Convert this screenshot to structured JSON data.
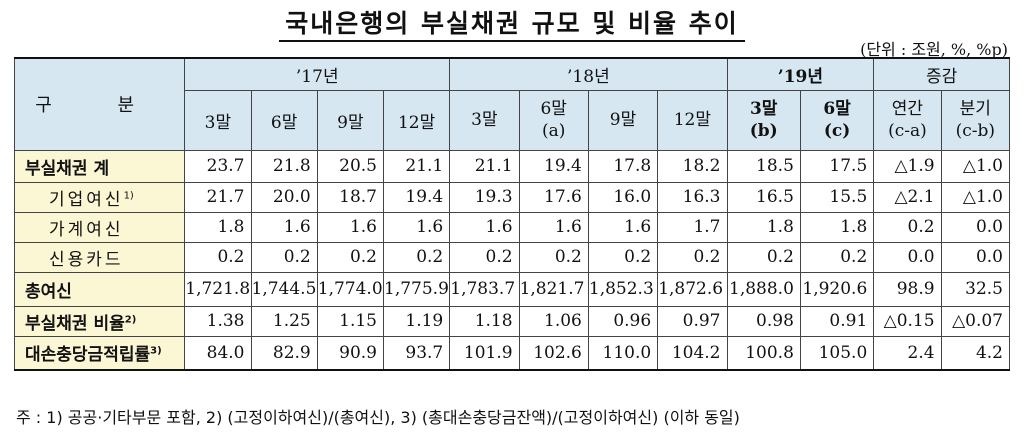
{
  "title": "국내은행의 부실채권 규모 및 비율 추이",
  "unit": "(단위 : 조원, %, %p)",
  "header": {
    "category": "구 분",
    "years": [
      "’17년",
      "’18년",
      "’19년",
      "증감"
    ],
    "sub17": [
      "3말",
      "6말",
      "9말",
      "12말"
    ],
    "sub18": [
      [
        "3말"
      ],
      [
        "6말",
        "(a)"
      ],
      [
        "9말"
      ],
      [
        "12말"
      ]
    ],
    "sub19": [
      [
        "3말",
        "(b)"
      ],
      [
        "6말",
        "(c)"
      ]
    ],
    "subChg": [
      [
        "연간",
        "(c-a)"
      ],
      [
        "분기",
        "(c-b)"
      ]
    ]
  },
  "rows": [
    {
      "label": "부실채권 계",
      "sup": "",
      "values": [
        "23.7",
        "21.8",
        "20.5",
        "21.1",
        "21.1",
        "19.4",
        "17.8",
        "18.2",
        "18.5",
        "17.5",
        "△1.9",
        "△1.0"
      ]
    },
    {
      "label": "기업여신",
      "sup": "1)",
      "values": [
        "21.7",
        "20.0",
        "18.7",
        "19.4",
        "19.3",
        "17.6",
        "16.0",
        "16.3",
        "16.5",
        "15.5",
        "△2.1",
        "△1.0"
      ]
    },
    {
      "label": "가계여신",
      "sup": "",
      "values": [
        "1.8",
        "1.6",
        "1.6",
        "1.6",
        "1.6",
        "1.6",
        "1.6",
        "1.7",
        "1.8",
        "1.8",
        "0.2",
        "0.0"
      ]
    },
    {
      "label": "신용카드",
      "sup": "",
      "values": [
        "0.2",
        "0.2",
        "0.2",
        "0.2",
        "0.2",
        "0.2",
        "0.2",
        "0.2",
        "0.2",
        "0.2",
        "0.0",
        "0.0"
      ]
    },
    {
      "label": "총여신",
      "sup": "",
      "values": [
        "1,721.8",
        "1,744.5",
        "1,774.0",
        "1,775.9",
        "1,783.7",
        "1,821.7",
        "1,852.3",
        "1,872.6",
        "1,888.0",
        "1,920.6",
        "98.9",
        "32.5"
      ]
    },
    {
      "label": "부실채권 비율",
      "sup": "2)",
      "values": [
        "1.38",
        "1.25",
        "1.15",
        "1.19",
        "1.18",
        "1.06",
        "0.96",
        "0.97",
        "0.98",
        "0.91",
        "△0.15",
        "△0.07"
      ]
    },
    {
      "label": "대손충당금적립률",
      "sup": "3)",
      "values": [
        "84.0",
        "82.9",
        "90.9",
        "93.7",
        "101.9",
        "102.6",
        "110.0",
        "104.2",
        "100.8",
        "105.0",
        "2.4",
        "4.2"
      ]
    }
  ],
  "footnote": "주 : 1) 공공·기타부문 포함, 2) (고정이하여신)/(총여신), 3) (총대손충당금잔액)/(고정이하여신) (이하 동일)"
}
